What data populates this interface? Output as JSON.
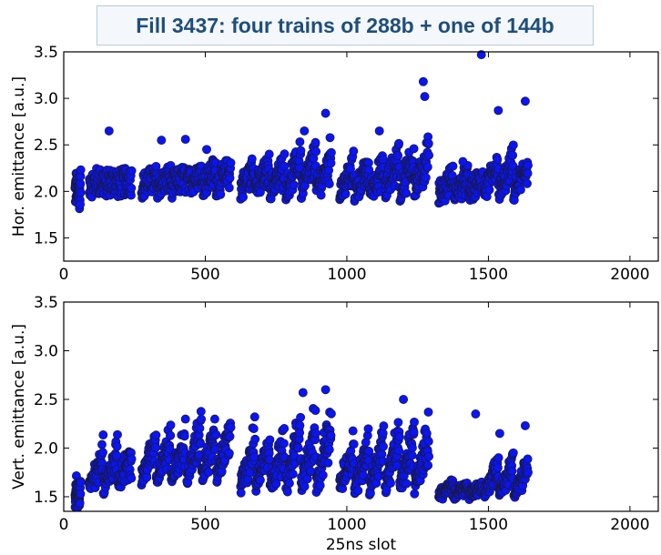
{
  "header": {
    "title": "Fill 3437: four trains of 288b + one of 144b"
  },
  "colors": {
    "marker": "#0a14f5",
    "marker_edge": "#1a1a33",
    "title_text": "#1f4e79",
    "title_box_bg": "#f4f8fc"
  },
  "chart_data": [
    {
      "type": "scatter",
      "title": "",
      "xlabel": "",
      "ylabel": "Hor. emittance [a.u.]",
      "xlim": [
        0,
        2100
      ],
      "ylim": [
        1.25,
        3.5
      ],
      "xticks": [
        "0",
        "500",
        "1000",
        "1500",
        "2000"
      ],
      "yticks": [
        "1.5",
        "2.0",
        "2.5",
        "3.0",
        "3.5"
      ],
      "grid": false,
      "outliers": [
        [
          160,
          2.65
        ],
        [
          345,
          2.55
        ],
        [
          430,
          2.56
        ],
        [
          505,
          2.45
        ],
        [
          665,
          2.35
        ],
        [
          850,
          2.65
        ],
        [
          925,
          2.84
        ],
        [
          1115,
          2.65
        ],
        [
          1270,
          3.18
        ],
        [
          1275,
          3.02
        ],
        [
          1475,
          3.47
        ],
        [
          1535,
          2.87
        ],
        [
          1630,
          2.97
        ],
        [
          1410,
          2.32
        ]
      ],
      "trains": [
        {
          "start": 40,
          "end": 60,
          "base": 1.98,
          "spread": 0.18,
          "rise": 0.1,
          "bunches": 48,
          "step": 12
        },
        {
          "start": 90,
          "end": 240,
          "base": 2.08,
          "spread": 0.15,
          "rise": 0.05,
          "bunches": 144,
          "step": 48
        },
        {
          "start": 275,
          "end": 430,
          "base": 2.06,
          "spread": 0.14,
          "rise": 0.1,
          "bunches": 144,
          "step": 48
        },
        {
          "start": 435,
          "end": 590,
          "base": 2.08,
          "spread": 0.14,
          "rise": 0.18,
          "bunches": 144,
          "step": 48
        },
        {
          "start": 625,
          "end": 780,
          "base": 2.04,
          "spread": 0.14,
          "rise": 0.25,
          "bunches": 144,
          "step": 48
        },
        {
          "start": 785,
          "end": 945,
          "base": 2.02,
          "spread": 0.12,
          "rise": 0.45,
          "bunches": 144,
          "step": 48
        },
        {
          "start": 975,
          "end": 1130,
          "base": 2.0,
          "spread": 0.12,
          "rise": 0.3,
          "bunches": 144,
          "step": 48
        },
        {
          "start": 1135,
          "end": 1290,
          "base": 2.02,
          "spread": 0.14,
          "rise": 0.45,
          "bunches": 144,
          "step": 48
        },
        {
          "start": 1325,
          "end": 1480,
          "base": 1.98,
          "spread": 0.12,
          "rise": 0.2,
          "bunches": 144,
          "step": 48
        },
        {
          "start": 1485,
          "end": 1640,
          "base": 2.0,
          "spread": 0.12,
          "rise": 0.35,
          "bunches": 144,
          "step": 48
        }
      ]
    },
    {
      "type": "scatter",
      "title": "",
      "xlabel": "25ns slot",
      "ylabel": "Vert. emittance [a.u.]",
      "xlim": [
        0,
        2100
      ],
      "ylim": [
        1.35,
        3.5
      ],
      "xticks": [
        "0",
        "500",
        "1000",
        "1500",
        "2000"
      ],
      "yticks": [
        "1.5",
        "2.0",
        "2.5",
        "3.0",
        "3.5"
      ],
      "grid": false,
      "outliers": [
        [
          845,
          2.57
        ],
        [
          925,
          2.6
        ],
        [
          1200,
          2.5
        ],
        [
          1455,
          2.35
        ],
        [
          1630,
          2.23
        ],
        [
          1540,
          2.15
        ]
      ],
      "trains": [
        {
          "start": 40,
          "end": 60,
          "base": 1.45,
          "spread": 0.08,
          "rise": 0.2,
          "bunches": 48,
          "step": 12
        },
        {
          "start": 90,
          "end": 240,
          "base": 1.6,
          "spread": 0.1,
          "rise": 0.45,
          "bunches": 144,
          "step": 48
        },
        {
          "start": 275,
          "end": 430,
          "base": 1.7,
          "spread": 0.1,
          "rise": 0.45,
          "bunches": 144,
          "step": 48
        },
        {
          "start": 435,
          "end": 590,
          "base": 1.7,
          "spread": 0.1,
          "rise": 0.6,
          "bunches": 144,
          "step": 48
        },
        {
          "start": 625,
          "end": 780,
          "base": 1.62,
          "spread": 0.1,
          "rise": 0.55,
          "bunches": 144,
          "step": 48
        },
        {
          "start": 785,
          "end": 945,
          "base": 1.6,
          "spread": 0.1,
          "rise": 0.8,
          "bunches": 144,
          "step": 48
        },
        {
          "start": 975,
          "end": 1130,
          "base": 1.6,
          "spread": 0.1,
          "rise": 0.55,
          "bunches": 144,
          "step": 48
        },
        {
          "start": 1135,
          "end": 1290,
          "base": 1.62,
          "spread": 0.1,
          "rise": 0.6,
          "bunches": 144,
          "step": 48
        },
        {
          "start": 1325,
          "end": 1480,
          "base": 1.52,
          "spread": 0.06,
          "rise": 0.12,
          "bunches": 144,
          "step": 48
        },
        {
          "start": 1485,
          "end": 1640,
          "base": 1.54,
          "spread": 0.06,
          "rise": 0.35,
          "bunches": 144,
          "step": 48
        }
      ]
    }
  ]
}
